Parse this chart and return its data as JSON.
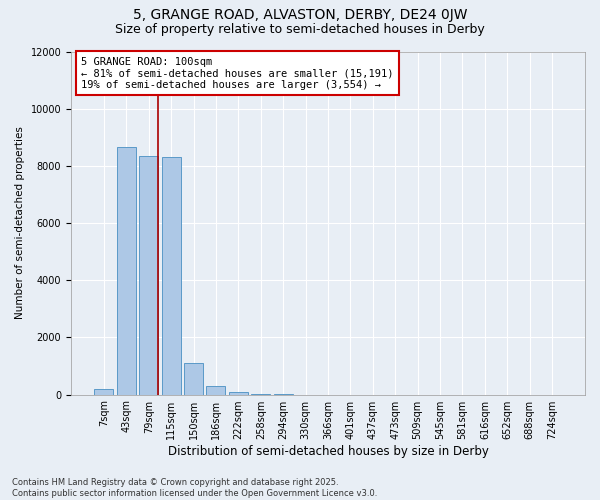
{
  "title1": "5, GRANGE ROAD, ALVASTON, DERBY, DE24 0JW",
  "title2": "Size of property relative to semi-detached houses in Derby",
  "xlabel": "Distribution of semi-detached houses by size in Derby",
  "ylabel": "Number of semi-detached properties",
  "categories": [
    "7sqm",
    "43sqm",
    "79sqm",
    "115sqm",
    "150sqm",
    "186sqm",
    "222sqm",
    "258sqm",
    "294sqm",
    "330sqm",
    "366sqm",
    "401sqm",
    "437sqm",
    "473sqm",
    "509sqm",
    "545sqm",
    "581sqm",
    "616sqm",
    "652sqm",
    "688sqm",
    "724sqm"
  ],
  "values": [
    200,
    8650,
    8350,
    8300,
    1100,
    300,
    80,
    30,
    5,
    0,
    0,
    0,
    0,
    0,
    0,
    0,
    0,
    0,
    0,
    0,
    0
  ],
  "bar_color": "#adc8e6",
  "bar_edge_color": "#5a9ac8",
  "vline_color": "#aa0000",
  "annotation_text": "5 GRANGE ROAD: 100sqm\n← 81% of semi-detached houses are smaller (15,191)\n19% of semi-detached houses are larger (3,554) →",
  "annotation_box_color": "#cc0000",
  "annotation_bg_color": "#ffffff",
  "ylim": [
    0,
    12000
  ],
  "yticks": [
    0,
    2000,
    4000,
    6000,
    8000,
    10000,
    12000
  ],
  "bg_color": "#e8eef5",
  "footnote": "Contains HM Land Registry data © Crown copyright and database right 2025.\nContains public sector information licensed under the Open Government Licence v3.0.",
  "title1_fontsize": 10,
  "title2_fontsize": 9,
  "xlabel_fontsize": 8.5,
  "ylabel_fontsize": 7.5,
  "tick_fontsize": 7,
  "annotation_fontsize": 7.5
}
